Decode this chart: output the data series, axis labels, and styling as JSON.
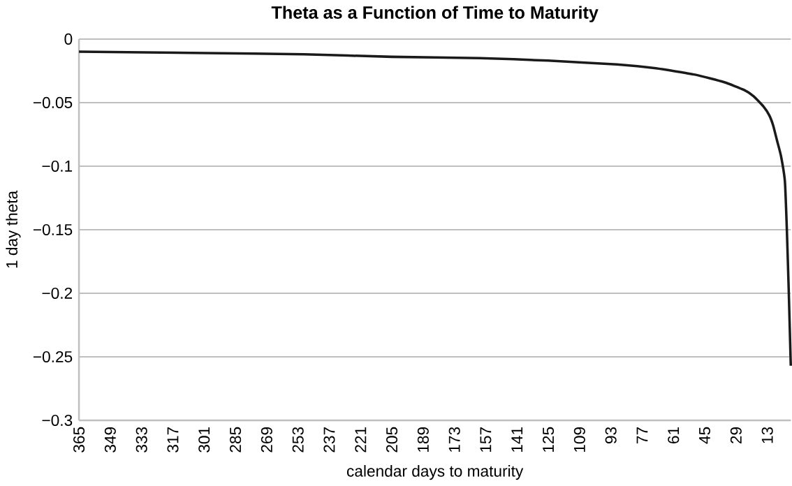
{
  "chart_data": {
    "type": "line",
    "title": "Theta as a Function of Time to Maturity",
    "xlabel": "calendar days to maturity",
    "ylabel": "1 day theta",
    "x": [
      365,
      300,
      250,
      205,
      160,
      125,
      90,
      70,
      50,
      35,
      25,
      20,
      15,
      12,
      10,
      8,
      6,
      4,
      3,
      2,
      1
    ],
    "series": [
      {
        "color": "#1a1a1a",
        "values": [
          -0.01,
          -0.011,
          -0.012,
          -0.014,
          -0.015,
          -0.017,
          -0.02,
          -0.023,
          -0.028,
          -0.034,
          -0.04,
          -0.045,
          -0.053,
          -0.06,
          -0.068,
          -0.08,
          -0.092,
          -0.112,
          -0.15,
          -0.2,
          -0.257
        ]
      }
    ],
    "xlim": [
      365,
      1
    ],
    "xticks": [
      365,
      349,
      333,
      317,
      301,
      285,
      269,
      253,
      237,
      221,
      205,
      189,
      173,
      157,
      141,
      125,
      109,
      93,
      77,
      61,
      45,
      29,
      13
    ],
    "ylim": [
      -0.3,
      0
    ],
    "yticks": [
      {
        "value": -0.3,
        "label": "−0.3"
      },
      {
        "value": -0.25,
        "label": "−0.25"
      },
      {
        "value": -0.2,
        "label": "−0.2"
      },
      {
        "value": -0.15,
        "label": "−0.15"
      },
      {
        "value": -0.1,
        "label": "−0.1"
      },
      {
        "value": -0.05,
        "label": "−0.05"
      },
      0
    ],
    "grid": "y",
    "marker": "none",
    "line_style": "solid"
  }
}
